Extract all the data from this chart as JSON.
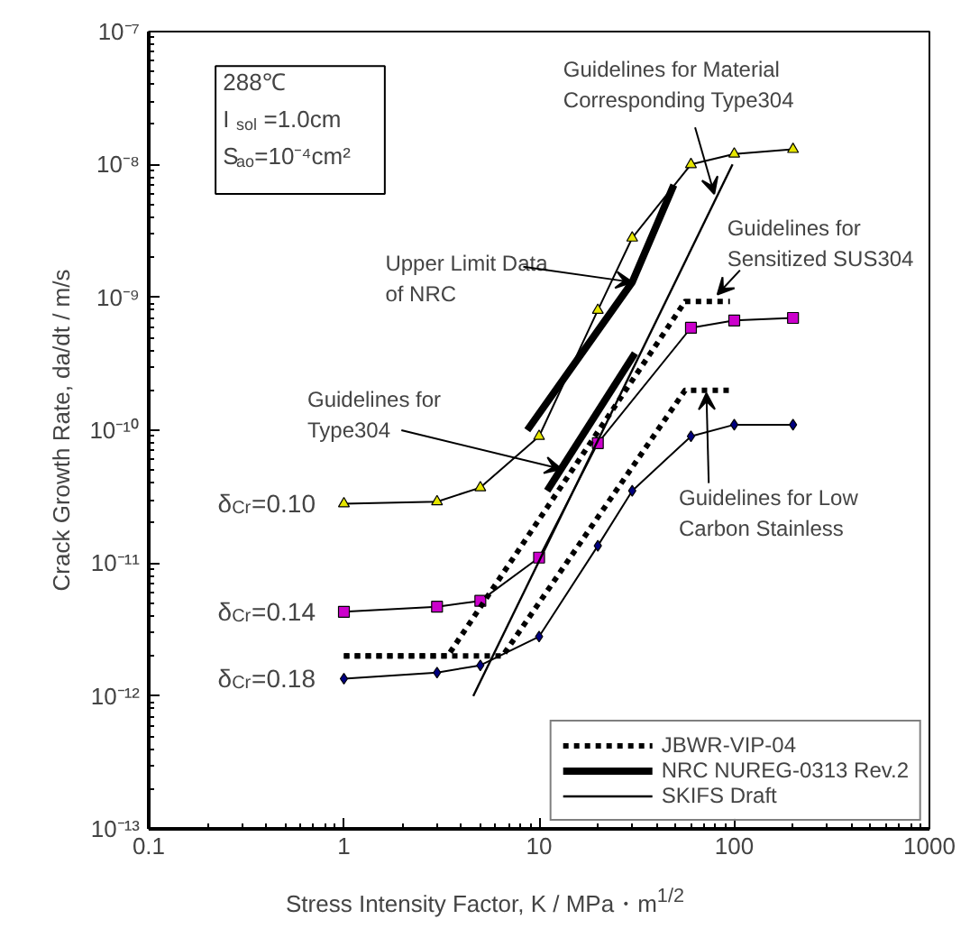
{
  "chart_data": {
    "type": "line",
    "xlabel": "Stress Intensity Factor, K / MPa・m$^{1/2}$",
    "ylabel": "Crack Growth Rate, da/dt / m/s",
    "log": "xy",
    "grid": false,
    "legend": "bottom right",
    "xlim": [
      0.1,
      1000
    ],
    "xticks": [
      0.1,
      1,
      10,
      100,
      1000
    ],
    "ylim": [
      1e-13,
      1e-07
    ],
    "yticks": [
      {
        "value": 1e-13,
        "label": "10⁻¹³"
      },
      {
        "value": 1e-12,
        "label": "10⁻¹²"
      },
      {
        "value": 1e-11,
        "label": "10⁻¹¹"
      },
      {
        "value": 1e-10,
        "label": "10⁻¹⁰"
      },
      {
        "value": 1e-09,
        "label": "10⁻⁹"
      },
      {
        "value": 1e-08,
        "label": "10⁻⁸"
      },
      {
        "value": 1e-07,
        "label": "10⁻⁷"
      }
    ],
    "series": [
      {
        "name": "δ$_{Cr}$=0.10",
        "color": "#e6e600",
        "marker": "triangle",
        "line_style": "solid",
        "x": [
          1,
          3,
          5,
          10,
          20,
          30,
          60,
          100,
          200
        ],
        "values": [
          2.8e-11,
          2.9e-11,
          3.7e-11,
          9e-11,
          8e-10,
          2.8e-09,
          1e-08,
          1.2e-08,
          1.3e-08
        ]
      },
      {
        "name": "δ$_{Cr}$=0.14",
        "color": "#cc00cc",
        "marker": "square",
        "line_style": "solid",
        "x": [
          1,
          3,
          5,
          10,
          20,
          60,
          100,
          200
        ],
        "values": [
          4.3e-12,
          4.7e-12,
          5.2e-12,
          1.1e-11,
          8e-11,
          5.9e-10,
          6.7e-10,
          7e-10
        ]
      },
      {
        "name": "δ$_{Cr}$=0.18",
        "color": "#000080",
        "marker": "diamond",
        "line_style": "solid",
        "x": [
          1,
          3,
          5,
          10,
          20,
          30,
          60,
          100,
          200
        ],
        "values": [
          1.35e-12,
          1.5e-12,
          1.7e-12,
          2.8e-12,
          1.35e-11,
          3.5e-11,
          9e-11,
          1.1e-10,
          1.1e-10
        ]
      },
      {
        "name": "JBWR-VIP-04",
        "color": "#000000",
        "marker": "none",
        "line_style": "dotted",
        "x": [
          1,
          3.4,
          56,
          95
        ],
        "values": [
          2e-12,
          2e-12,
          9.3e-10,
          9.3e-10
        ]
      },
      {
        "color": "#000000",
        "marker": "none",
        "line_style": "dotted",
        "x": [
          1,
          6.5,
          56,
          95
        ],
        "values": [
          2e-12,
          2e-12,
          2e-10,
          2e-10
        ]
      },
      {
        "name": "NRC NUREG-0313 Rev.2",
        "color": "#000000",
        "marker": "none",
        "line_style": "solid",
        "x": [
          8.7,
          30,
          49
        ],
        "values": [
          1e-10,
          1.3e-09,
          7e-09
        ]
      },
      {
        "color": "#000000",
        "marker": "none",
        "line_style": "solid",
        "x": [
          11,
          31
        ],
        "values": [
          3.5e-11,
          3.8e-10
        ]
      },
      {
        "name": "SKIFS Draft",
        "color": "#000000",
        "marker": "none",
        "line_style": "solid",
        "x": [
          4.6,
          98
        ],
        "values": [
          1e-12,
          1e-08
        ]
      }
    ],
    "annotations": [
      "288℃",
      "I$_{sol}$=1.0cm",
      "S$_{ao}$=10⁻⁴cm²",
      {
        "text": "Upper Limit Data\nof NRC",
        "x": 30,
        "y": 1.3e-09
      },
      {
        "text": "Guidelines for Material\nCorresponding  Type304",
        "x": 79,
        "y": 6e-09
      },
      {
        "text": "Guidelines for\nSensitized SUS304",
        "x": 82,
        "y": 1.05e-09
      },
      {
        "text": "Guidelines for\nType304",
        "x": 13,
        "y": 5.1e-11
      },
      {
        "text": "Guidelines for Low\nCarbon Stainless",
        "x": 72,
        "y": 1.9e-10
      }
    ]
  }
}
